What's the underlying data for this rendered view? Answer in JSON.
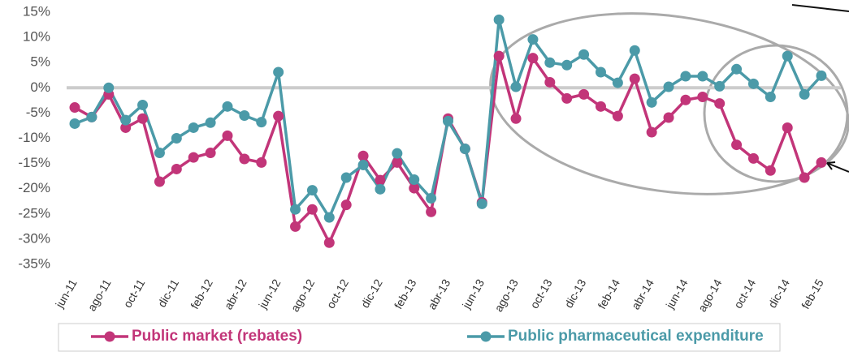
{
  "chart_data": {
    "type": "line",
    "categories": [
      "jun-11",
      null,
      "ago-11",
      null,
      "oct-11",
      null,
      "dic-11",
      null,
      "feb-12",
      null,
      "abr-12",
      null,
      "jun-12",
      null,
      "ago-12",
      null,
      "oct-12",
      null,
      "dic-12",
      null,
      "feb-13",
      null,
      "abr-13",
      null,
      "jun-13",
      null,
      "ago-13",
      null,
      "oct-13",
      null,
      "dic-13",
      null,
      "feb-14",
      null,
      "abr-14",
      null,
      "jun-14",
      null,
      "ago-14",
      null,
      "oct-14",
      null,
      "dic-14",
      null,
      "feb-15"
    ],
    "series": [
      {
        "name": "Public market (rebates)",
        "color": "#c23579",
        "values": [
          -3.9,
          -5.8,
          -1.3,
          -7.9,
          -6.1,
          -18.6,
          -16.1,
          -13.8,
          -12.9,
          -9.5,
          -14.1,
          -14.8,
          -5.6,
          -27.5,
          -24.1,
          -30.7,
          -23.2,
          -13.5,
          -18.3,
          -14.8,
          -19.9,
          -24.6,
          -6.1,
          -12.1,
          -22.7,
          6.3,
          -6.1,
          5.9,
          1.1,
          -2.1,
          -1.3,
          -3.7,
          -5.6,
          1.8,
          -8.8,
          -5.9,
          -2.4,
          -1.8,
          -3.1,
          -11.3,
          -14.0,
          -16.4,
          -7.9,
          -17.8,
          -14.8
        ]
      },
      {
        "name": "Public pharmaceutical expenditure",
        "color": "#4b9aa8",
        "values": [
          -7.1,
          -5.8,
          0,
          -6.4,
          -3.4,
          -12.9,
          -10.0,
          -7.9,
          -6.9,
          -3.7,
          -5.5,
          -6.8,
          3.1,
          -24.1,
          -20.3,
          -25.7,
          -17.8,
          -15.3,
          -20.1,
          -13.0,
          -18.2,
          -21.9,
          -6.6,
          -12.1,
          -23.0,
          13.5,
          0.2,
          9.6,
          5.0,
          4.5,
          6.6,
          3.1,
          1.0,
          7.4,
          -2.9,
          0.2,
          2.3,
          2.3,
          0.3,
          3.7,
          0.8,
          -1.8,
          6.3,
          -1.3,
          2.4
        ]
      }
    ],
    "ylim": [
      -35,
      15
    ],
    "yticks": [
      {
        "value": -35,
        "label": "-35%"
      },
      {
        "value": -30,
        "label": "-30%"
      },
      {
        "value": -25,
        "label": "-25%"
      },
      {
        "value": -20,
        "label": "-20%"
      },
      {
        "value": -15,
        "label": "-15%"
      },
      {
        "value": -10,
        "label": "-10%"
      },
      {
        "value": -5,
        "label": "-5%"
      },
      {
        "value": 0,
        "label": "0%"
      },
      {
        "value": 5,
        "label": "5%"
      },
      {
        "value": 10,
        "label": "10%"
      },
      {
        "value": 15,
        "label": "15%"
      }
    ],
    "grid": false,
    "legend": "bottom"
  }
}
